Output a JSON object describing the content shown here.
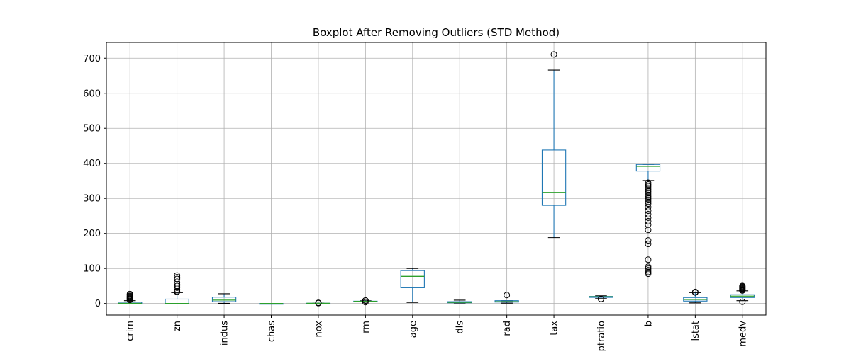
{
  "chart_data": {
    "type": "boxplot",
    "title": "Boxplot After Removing Outliers (STD Method)",
    "xlabel": "",
    "ylabel": "",
    "ylim": [
      -33,
      745
    ],
    "yticks": [
      0,
      100,
      200,
      300,
      400,
      500,
      600,
      700
    ],
    "grid": true,
    "colors": {
      "box": "#1f77b4",
      "median": "#2ca02c",
      "cap": "#000000",
      "flier": "#000000",
      "grid": "#b0b0b0"
    },
    "categories": [
      "crim",
      "zn",
      "indus",
      "chas",
      "nox",
      "rm",
      "age",
      "dis",
      "rad",
      "tax",
      "ptratio",
      "b",
      "lstat",
      "medv"
    ],
    "series": [
      {
        "label": "crim",
        "whislo": 0,
        "q1": 0.1,
        "med": 0.3,
        "q3": 3.5,
        "whishi": 8,
        "fliers": [
          10,
          12,
          14,
          16,
          18,
          20,
          22,
          25,
          27
        ]
      },
      {
        "label": "zn",
        "whislo": 0,
        "q1": 0,
        "med": 0,
        "q3": 12.5,
        "whishi": 31,
        "fliers": [
          33,
          35,
          40,
          45,
          50,
          55,
          60,
          70,
          75,
          80
        ]
      },
      {
        "label": "indus",
        "whislo": 0.5,
        "q1": 5.2,
        "med": 9.7,
        "q3": 18.1,
        "whishi": 27.7,
        "fliers": []
      },
      {
        "label": "chas",
        "whislo": 0,
        "q1": 0,
        "med": 0,
        "q3": 0,
        "whishi": 0,
        "fliers": []
      },
      {
        "label": "nox",
        "whislo": 0.4,
        "q1": 0.45,
        "med": 0.54,
        "q3": 0.62,
        "whishi": 0.87,
        "fliers": [
          1,
          2
        ]
      },
      {
        "label": "rm",
        "whislo": 4.9,
        "q1": 5.9,
        "med": 6.2,
        "q3": 6.6,
        "whishi": 7.7,
        "fliers": [
          3.9,
          8.4,
          8.8
        ]
      },
      {
        "label": "age",
        "whislo": 2.9,
        "q1": 45,
        "med": 77.5,
        "q3": 94,
        "whishi": 100,
        "fliers": []
      },
      {
        "label": "dis",
        "whislo": 1.1,
        "q1": 2.1,
        "med": 3.2,
        "q3": 5.2,
        "whishi": 9.5,
        "fliers": []
      },
      {
        "label": "rad",
        "whislo": 1,
        "q1": 4,
        "med": 5,
        "q3": 8,
        "whishi": 8,
        "fliers": [
          24
        ]
      },
      {
        "label": "tax",
        "whislo": 188,
        "q1": 280,
        "med": 317,
        "q3": 438,
        "whishi": 666,
        "fliers": [
          711
        ]
      },
      {
        "label": "ptratio",
        "whislo": 14,
        "q1": 17.4,
        "med": 19.1,
        "q3": 20.2,
        "whishi": 22,
        "fliers": [
          12.6,
          13
        ]
      },
      {
        "label": "b",
        "whislo": 351,
        "q1": 378,
        "med": 391.5,
        "q3": 396.9,
        "whishi": 396.9,
        "fliers": [
          85,
          90,
          95,
          100,
          105,
          125,
          170,
          180,
          210,
          225,
          235,
          245,
          255,
          265,
          275,
          285,
          290,
          295,
          300,
          305,
          310,
          315,
          320,
          325,
          330,
          335,
          340,
          345
        ]
      },
      {
        "label": "lstat",
        "whislo": 1.7,
        "q1": 6.9,
        "med": 11.4,
        "q3": 17,
        "whishi": 31,
        "fliers": [
          31.5,
          32,
          33
        ]
      },
      {
        "label": "medv",
        "whislo": 8,
        "q1": 17,
        "med": 21,
        "q3": 25,
        "whishi": 36,
        "fliers": [
          5,
          37,
          38,
          40,
          42,
          44,
          46,
          48,
          50
        ]
      }
    ]
  }
}
